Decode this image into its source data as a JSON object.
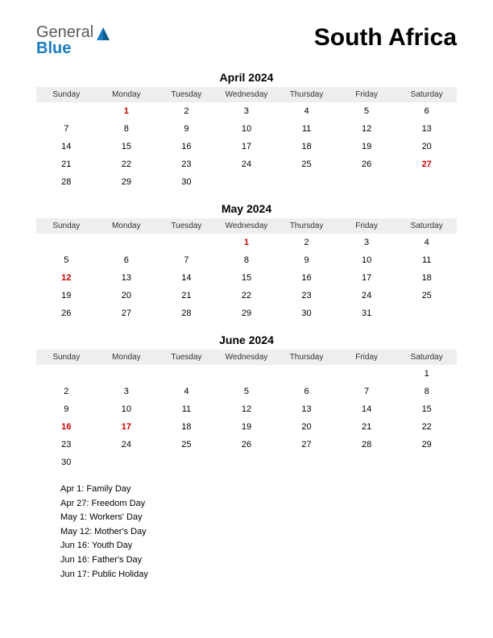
{
  "logo": {
    "general": "General",
    "blue": "Blue",
    "tri_color": "#1a7bbf"
  },
  "country": "South Africa",
  "day_headers": [
    "Sunday",
    "Monday",
    "Tuesday",
    "Wednesday",
    "Thursday",
    "Friday",
    "Saturday"
  ],
  "colors": {
    "header_bg": "#eeeeee",
    "holiday_text": "#cc0000",
    "text": "#000000"
  },
  "months": [
    {
      "title": "April 2024",
      "weeks": [
        [
          {
            "d": ""
          },
          {
            "d": "1",
            "h": true
          },
          {
            "d": "2"
          },
          {
            "d": "3"
          },
          {
            "d": "4"
          },
          {
            "d": "5"
          },
          {
            "d": "6"
          }
        ],
        [
          {
            "d": "7"
          },
          {
            "d": "8"
          },
          {
            "d": "9"
          },
          {
            "d": "10"
          },
          {
            "d": "11"
          },
          {
            "d": "12"
          },
          {
            "d": "13"
          }
        ],
        [
          {
            "d": "14"
          },
          {
            "d": "15"
          },
          {
            "d": "16"
          },
          {
            "d": "17"
          },
          {
            "d": "18"
          },
          {
            "d": "19"
          },
          {
            "d": "20"
          }
        ],
        [
          {
            "d": "21"
          },
          {
            "d": "22"
          },
          {
            "d": "23"
          },
          {
            "d": "24"
          },
          {
            "d": "25"
          },
          {
            "d": "26"
          },
          {
            "d": "27",
            "h": true
          }
        ],
        [
          {
            "d": "28"
          },
          {
            "d": "29"
          },
          {
            "d": "30"
          },
          {
            "d": ""
          },
          {
            "d": ""
          },
          {
            "d": ""
          },
          {
            "d": ""
          }
        ]
      ]
    },
    {
      "title": "May 2024",
      "weeks": [
        [
          {
            "d": ""
          },
          {
            "d": ""
          },
          {
            "d": ""
          },
          {
            "d": "1",
            "h": true
          },
          {
            "d": "2"
          },
          {
            "d": "3"
          },
          {
            "d": "4"
          }
        ],
        [
          {
            "d": "5"
          },
          {
            "d": "6"
          },
          {
            "d": "7"
          },
          {
            "d": "8"
          },
          {
            "d": "9"
          },
          {
            "d": "10"
          },
          {
            "d": "11"
          }
        ],
        [
          {
            "d": "12",
            "h": true
          },
          {
            "d": "13"
          },
          {
            "d": "14"
          },
          {
            "d": "15"
          },
          {
            "d": "16"
          },
          {
            "d": "17"
          },
          {
            "d": "18"
          }
        ],
        [
          {
            "d": "19"
          },
          {
            "d": "20"
          },
          {
            "d": "21"
          },
          {
            "d": "22"
          },
          {
            "d": "23"
          },
          {
            "d": "24"
          },
          {
            "d": "25"
          }
        ],
        [
          {
            "d": "26"
          },
          {
            "d": "27"
          },
          {
            "d": "28"
          },
          {
            "d": "29"
          },
          {
            "d": "30"
          },
          {
            "d": "31"
          },
          {
            "d": ""
          }
        ]
      ]
    },
    {
      "title": "June 2024",
      "weeks": [
        [
          {
            "d": ""
          },
          {
            "d": ""
          },
          {
            "d": ""
          },
          {
            "d": ""
          },
          {
            "d": ""
          },
          {
            "d": ""
          },
          {
            "d": "1"
          }
        ],
        [
          {
            "d": "2"
          },
          {
            "d": "3"
          },
          {
            "d": "4"
          },
          {
            "d": "5"
          },
          {
            "d": "6"
          },
          {
            "d": "7"
          },
          {
            "d": "8"
          }
        ],
        [
          {
            "d": "9"
          },
          {
            "d": "10"
          },
          {
            "d": "11"
          },
          {
            "d": "12"
          },
          {
            "d": "13"
          },
          {
            "d": "14"
          },
          {
            "d": "15"
          }
        ],
        [
          {
            "d": "16",
            "h": true
          },
          {
            "d": "17",
            "h": true
          },
          {
            "d": "18"
          },
          {
            "d": "19"
          },
          {
            "d": "20"
          },
          {
            "d": "21"
          },
          {
            "d": "22"
          }
        ],
        [
          {
            "d": "23"
          },
          {
            "d": "24"
          },
          {
            "d": "25"
          },
          {
            "d": "26"
          },
          {
            "d": "27"
          },
          {
            "d": "28"
          },
          {
            "d": "29"
          }
        ],
        [
          {
            "d": "30"
          },
          {
            "d": ""
          },
          {
            "d": ""
          },
          {
            "d": ""
          },
          {
            "d": ""
          },
          {
            "d": ""
          },
          {
            "d": ""
          }
        ]
      ]
    }
  ],
  "holidays": [
    "Apr 1: Family Day",
    "Apr 27: Freedom Day",
    "May 1: Workers' Day",
    "May 12: Mother's Day",
    "Jun 16: Youth Day",
    "Jun 16: Father's Day",
    "Jun 17: Public Holiday"
  ]
}
